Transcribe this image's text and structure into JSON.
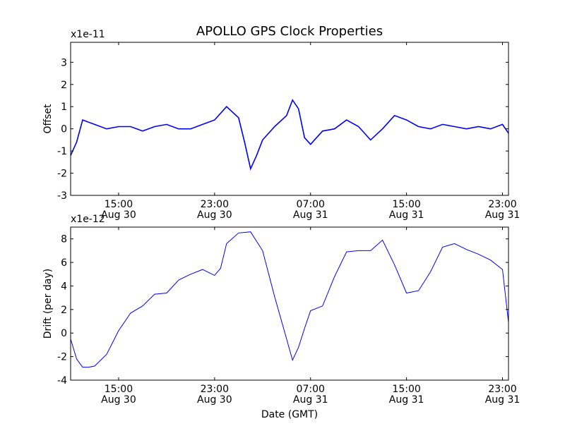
{
  "title": "APOLLO GPS Clock Properties",
  "chart_data": [
    {
      "type": "line",
      "ylabel": "Offset",
      "multiplier": "x1e-11",
      "ylim": [
        -3,
        3.9
      ],
      "yticks": [
        3,
        2,
        1,
        0,
        -1,
        -2,
        -3
      ],
      "xlim": [
        "2013-08-30 11:00",
        "2013-08-31 23:30"
      ],
      "xticks": [
        {
          "t": "2013-08-30 15:00",
          "line1": "15:00",
          "line2": "Aug 30"
        },
        {
          "t": "2013-08-30 23:00",
          "line1": "23:00",
          "line2": "Aug 30"
        },
        {
          "t": "2013-08-31 07:00",
          "line1": "07:00",
          "line2": "Aug 31"
        },
        {
          "t": "2013-08-31 15:00",
          "line1": "15:00",
          "line2": "Aug 31"
        },
        {
          "t": "2013-08-31 23:00",
          "line1": "23:00",
          "line2": "Aug 31"
        }
      ],
      "color": "#0000ff",
      "series": [
        {
          "x": [
            "2013-08-30 11:00",
            "2013-08-30 11:30",
            "2013-08-30 12:00",
            "2013-08-30 13:00",
            "2013-08-30 14:00",
            "2013-08-30 15:00",
            "2013-08-30 16:00",
            "2013-08-30 17:00",
            "2013-08-30 18:00",
            "2013-08-30 19:00",
            "2013-08-30 20:00",
            "2013-08-30 21:00",
            "2013-08-30 22:00",
            "2013-08-30 23:00",
            "2013-08-31 00:00",
            "2013-08-31 01:00",
            "2013-08-31 01:30",
            "2013-08-31 02:00",
            "2013-08-31 02:30",
            "2013-08-31 03:00",
            "2013-08-31 04:00",
            "2013-08-31 05:00",
            "2013-08-31 05:30",
            "2013-08-31 06:00",
            "2013-08-31 06:30",
            "2013-08-31 07:00",
            "2013-08-31 08:00",
            "2013-08-31 09:00",
            "2013-08-31 10:00",
            "2013-08-31 11:00",
            "2013-08-31 12:00",
            "2013-08-31 13:00",
            "2013-08-31 14:00",
            "2013-08-31 15:00",
            "2013-08-31 16:00",
            "2013-08-31 17:00",
            "2013-08-31 18:00",
            "2013-08-31 19:00",
            "2013-08-31 20:00",
            "2013-08-31 21:00",
            "2013-08-31 22:00",
            "2013-08-31 23:00",
            "2013-08-31 23:30"
          ],
          "values": [
            -1.2,
            -0.6,
            0.4,
            0.2,
            0.0,
            0.1,
            0.1,
            -0.1,
            0.1,
            0.2,
            0.0,
            0.0,
            0.2,
            0.4,
            1.0,
            0.5,
            -0.6,
            -1.8,
            -1.2,
            -0.5,
            0.1,
            0.6,
            1.3,
            0.9,
            -0.4,
            -0.7,
            -0.1,
            0.0,
            0.4,
            0.1,
            -0.5,
            0.0,
            0.6,
            0.4,
            0.1,
            0.0,
            0.2,
            0.1,
            0.0,
            0.1,
            0.0,
            0.2,
            -0.2
          ]
        }
      ]
    },
    {
      "type": "line",
      "ylabel": "Drift (per day)",
      "xlabel": "Date (GMT)",
      "multiplier": "x1e-12",
      "ylim": [
        -4,
        9
      ],
      "yticks": [
        8,
        6,
        4,
        2,
        0,
        -2,
        -4
      ],
      "xlim": [
        "2013-08-30 11:00",
        "2013-08-31 23:30"
      ],
      "xticks": [
        {
          "t": "2013-08-30 15:00",
          "line1": "15:00",
          "line2": "Aug 30"
        },
        {
          "t": "2013-08-30 23:00",
          "line1": "23:00",
          "line2": "Aug 30"
        },
        {
          "t": "2013-08-31 07:00",
          "line1": "07:00",
          "line2": "Aug 31"
        },
        {
          "t": "2013-08-31 15:00",
          "line1": "15:00",
          "line2": "Aug 31"
        },
        {
          "t": "2013-08-31 23:00",
          "line1": "23:00",
          "line2": "Aug 31"
        }
      ],
      "color": "#0000ff",
      "series": [
        {
          "x": [
            "2013-08-30 11:00",
            "2013-08-30 11:30",
            "2013-08-30 12:00",
            "2013-08-30 12:30",
            "2013-08-30 13:00",
            "2013-08-30 14:00",
            "2013-08-30 15:00",
            "2013-08-30 16:00",
            "2013-08-30 17:00",
            "2013-08-30 18:00",
            "2013-08-30 19:00",
            "2013-08-30 20:00",
            "2013-08-30 21:00",
            "2013-08-30 22:00",
            "2013-08-30 23:00",
            "2013-08-30 23:30",
            "2013-08-31 00:00",
            "2013-08-31 01:00",
            "2013-08-31 02:00",
            "2013-08-31 03:00",
            "2013-08-31 04:00",
            "2013-08-31 05:00",
            "2013-08-31 05:30",
            "2013-08-31 06:00",
            "2013-08-31 06:30",
            "2013-08-31 07:00",
            "2013-08-31 08:00",
            "2013-08-31 09:00",
            "2013-08-31 10:00",
            "2013-08-31 11:00",
            "2013-08-31 12:00",
            "2013-08-31 13:00",
            "2013-08-31 14:00",
            "2013-08-31 15:00",
            "2013-08-31 16:00",
            "2013-08-31 17:00",
            "2013-08-31 18:00",
            "2013-08-31 19:00",
            "2013-08-31 20:00",
            "2013-08-31 21:00",
            "2013-08-31 22:00",
            "2013-08-31 23:00",
            "2013-08-31 23:30"
          ],
          "values": [
            -0.5,
            -2.2,
            -2.9,
            -2.9,
            -2.8,
            -1.8,
            0.2,
            1.7,
            2.3,
            3.3,
            3.4,
            4.5,
            5.0,
            5.4,
            4.9,
            5.5,
            7.6,
            8.5,
            8.6,
            7.0,
            3.1,
            -0.5,
            -2.3,
            -1.2,
            0.4,
            1.9,
            2.3,
            4.8,
            6.9,
            7.0,
            7.0,
            7.9,
            5.8,
            3.4,
            3.6,
            5.2,
            7.3,
            7.6,
            7.1,
            6.7,
            6.2,
            5.4,
            0.9
          ]
        }
      ]
    }
  ]
}
